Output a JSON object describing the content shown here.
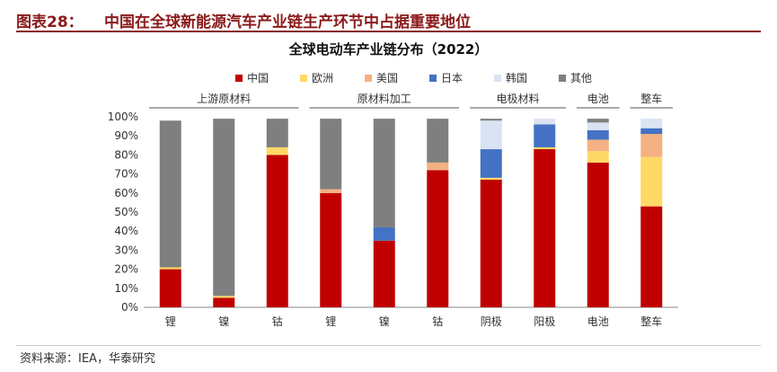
{
  "figure": {
    "number": "图表28：",
    "title": "中国在全球新能源汽车产业链生产环节中占据重要地位",
    "source": "资料来源：IEA，华泰研究"
  },
  "chart_data": {
    "type": "bar",
    "stacked": true,
    "title": "全球电动车产业链分布（2022）",
    "categories": [
      "锂",
      "镍",
      "钴",
      "锂",
      "镍",
      "钴",
      "阴极",
      "阳极",
      "电池",
      "整车"
    ],
    "groups": [
      {
        "label": "上游原材料",
        "categories": [
          0,
          1,
          2
        ]
      },
      {
        "label": "原材料加工",
        "categories": [
          3,
          4,
          5
        ]
      },
      {
        "label": "电极材料",
        "categories": [
          6,
          7
        ]
      },
      {
        "label": "电池",
        "categories": [
          8
        ]
      },
      {
        "label": "整车",
        "categories": [
          9
        ]
      }
    ],
    "series": [
      {
        "name": "中国",
        "color": "#c00000",
        "values": [
          20,
          5,
          80,
          60,
          35,
          72,
          67,
          83,
          76,
          53
        ]
      },
      {
        "name": "欧洲",
        "color": "#ffd966",
        "values": [
          1,
          1,
          4,
          0,
          0,
          0,
          1,
          1,
          6,
          26
        ]
      },
      {
        "name": "美国",
        "color": "#f4b183",
        "values": [
          0,
          0,
          0,
          2,
          0,
          4,
          0,
          0,
          6,
          12
        ]
      },
      {
        "name": "日本",
        "color": "#4472c4",
        "values": [
          0,
          0,
          0,
          0,
          7,
          0,
          15,
          12,
          5,
          3
        ]
      },
      {
        "name": "韩国",
        "color": "#dae3f3",
        "values": [
          0,
          0,
          0,
          0,
          0,
          0,
          15,
          3,
          4,
          5
        ]
      },
      {
        "name": "其他",
        "color": "#7f7f7f",
        "values": [
          77,
          93,
          15,
          37,
          57,
          23,
          1,
          0,
          2,
          0
        ]
      }
    ],
    "y_ticks": [
      "0%",
      "10%",
      "20%",
      "30%",
      "40%",
      "50%",
      "60%",
      "70%",
      "80%",
      "90%",
      "100%"
    ],
    "ylim": [
      0,
      100
    ],
    "ylabel": "",
    "xlabel": "",
    "legend_position": "top",
    "grid": false
  }
}
